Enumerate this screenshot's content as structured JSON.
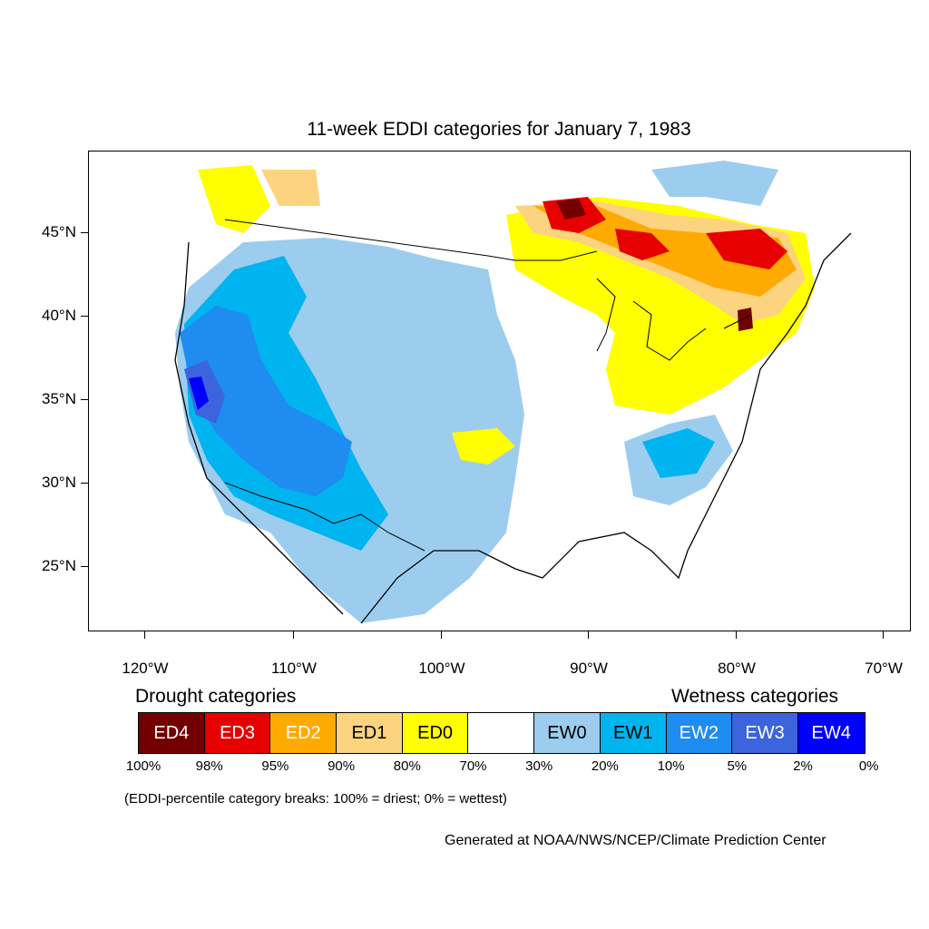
{
  "title": "11-week EDDI categories for January 7, 1983",
  "axes": {
    "lat_labels": [
      "45°N",
      "40°N",
      "35°N",
      "30°N",
      "25°N"
    ],
    "lon_labels": [
      "120°W",
      "110°W",
      "100°W",
      "90°W",
      "80°W",
      "70°W"
    ]
  },
  "legend": {
    "drought_heading": "Drought categories",
    "wetness_heading": "Wetness categories",
    "categories": [
      {
        "label": "ED4",
        "color": "#730000",
        "text_color": "#ffffff"
      },
      {
        "label": "ED3",
        "color": "#e60000",
        "text_color": "#ffffff"
      },
      {
        "label": "ED2",
        "color": "#ffaa00",
        "text_color": "#ffffff"
      },
      {
        "label": "ED1",
        "color": "#fcd37f",
        "text_color": "#000000"
      },
      {
        "label": "ED0",
        "color": "#ffff00",
        "text_color": "#000000"
      },
      {
        "label": "",
        "color": "#ffffff",
        "text_color": "#000000"
      },
      {
        "label": "EW0",
        "color": "#9dcdee",
        "text_color": "#000000"
      },
      {
        "label": "EW1",
        "color": "#00b4f0",
        "text_color": "#000000"
      },
      {
        "label": "EW2",
        "color": "#1e8cf0",
        "text_color": "#ffffff"
      },
      {
        "label": "EW3",
        "color": "#3c64dc",
        "text_color": "#ffffff"
      },
      {
        "label": "EW4",
        "color": "#0000ff",
        "text_color": "#ffffff"
      }
    ],
    "percentiles": [
      "100%",
      "98%",
      "95%",
      "90%",
      "80%",
      "70%",
      "30%",
      "20%",
      "10%",
      "5%",
      "2%",
      "0%"
    ]
  },
  "note": "(EDDI-percentile category breaks: 100% = driest; 0% = wettest)",
  "credit": "Generated at NOAA/NWS/NCEP/Climate Prediction Center"
}
